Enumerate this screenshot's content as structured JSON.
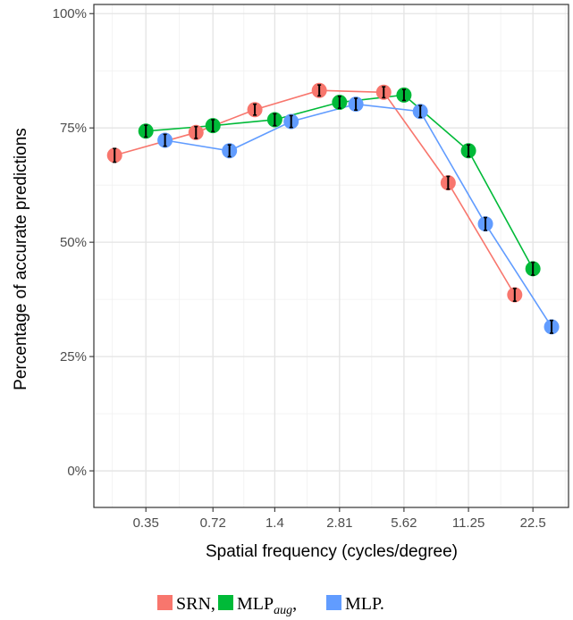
{
  "chart_data": {
    "type": "line",
    "title": "",
    "xlabel": "Spatial frequency (cycles/degree)",
    "ylabel": "Percentage of accurate predictions",
    "categories": [
      "0.35",
      "0.72",
      "1.4",
      "2.81",
      "5.62",
      "11.25",
      "22.5"
    ],
    "x_scale": "log2",
    "ylim": [
      0,
      100
    ],
    "yticks": [
      "0%",
      "25%",
      "50%",
      "75%",
      "100%"
    ],
    "grid": true,
    "legend_position": "bottom",
    "series": [
      {
        "name": "SRN",
        "color": "#F8766D",
        "x": [
          0.25,
          0.6,
          1.13,
          2.26,
          4.52,
          9.04,
          18.5
        ],
        "values": [
          69,
          74,
          79,
          83.2,
          82.8,
          63,
          38.5
        ],
        "errors": [
          1.5,
          1.3,
          1.2,
          1.2,
          1.2,
          1.4,
          1.4
        ]
      },
      {
        "name": "MLP",
        "name_sub": "aug",
        "color": "#00BA38",
        "x": [
          0.35,
          0.72,
          1.4,
          2.81,
          5.62,
          11.25,
          22.5
        ],
        "values": [
          74.3,
          75.5,
          76.8,
          80.6,
          82.2,
          70,
          44.2
        ],
        "errors": [
          1.3,
          1.3,
          1.3,
          1.3,
          1.2,
          1.3,
          1.4
        ]
      },
      {
        "name": "MLP.",
        "color": "#619CFF",
        "x": [
          0.43,
          0.86,
          1.67,
          3.35,
          6.7,
          13.5,
          27.5
        ],
        "values": [
          72.3,
          70,
          76.4,
          80.2,
          78.6,
          54,
          31.5
        ],
        "errors": [
          1.3,
          1.3,
          1.3,
          1.3,
          1.3,
          1.4,
          1.4
        ]
      }
    ],
    "legend_text": {
      "srn": "SRN,",
      "mlpaug_main": "MLP",
      "mlpaug_sub": "aug",
      "mlpaug_suffix": ",",
      "mlp": "MLP."
    }
  }
}
